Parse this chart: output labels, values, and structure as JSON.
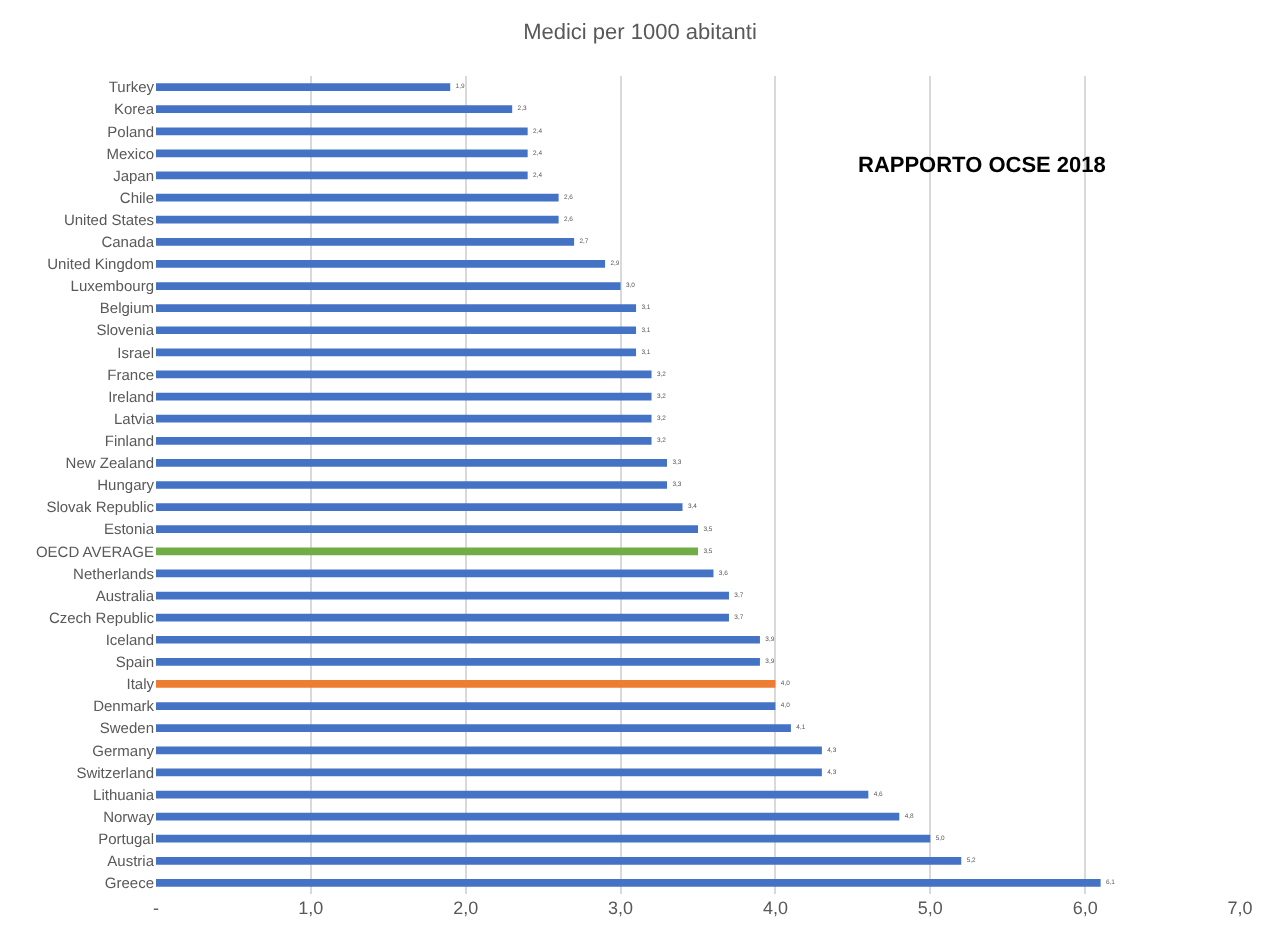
{
  "chart_data": {
    "type": "bar",
    "orientation": "horizontal",
    "title": "Medici per 1000 abitanti",
    "categories": [
      "Turkey",
      "Korea",
      "Poland",
      "Mexico",
      "Japan",
      "Chile",
      "United States",
      "Canada",
      "United Kingdom",
      "Luxembourg",
      "Belgium",
      "Slovenia",
      "Israel",
      "France",
      "Ireland",
      "Latvia",
      "Finland",
      "New Zealand",
      "Hungary",
      "Slovak Republic",
      "Estonia",
      "OECD AVERAGE",
      "Netherlands",
      "Australia",
      "Czech Republic",
      "Iceland",
      "Spain",
      "Italy",
      "Denmark",
      "Sweden",
      "Germany",
      "Switzerland",
      "Lithuania",
      "Norway",
      "Portugal",
      "Austria",
      "Greece"
    ],
    "values": [
      1.9,
      2.3,
      2.4,
      2.4,
      2.4,
      2.6,
      2.6,
      2.7,
      2.9,
      3.0,
      3.1,
      3.1,
      3.1,
      3.2,
      3.2,
      3.2,
      3.2,
      3.3,
      3.3,
      3.4,
      3.5,
      3.5,
      3.6,
      3.7,
      3.7,
      3.9,
      3.9,
      4.0,
      4.0,
      4.1,
      4.3,
      4.3,
      4.6,
      4.8,
      5.0,
      5.2,
      6.1
    ],
    "value_labels": [
      "1,9",
      "2,3",
      "2,4",
      "2,4",
      "2,4",
      "2,6",
      "2,6",
      "2,7",
      "2,9",
      "3,0",
      "3,1",
      "3,1",
      "3,1",
      "3,2",
      "3,2",
      "3,2",
      "3,2",
      "3,3",
      "3,3",
      "3,4",
      "3,5",
      "3,5",
      "3,6",
      "3,7",
      "3,7",
      "3,9",
      "3,9",
      "4,0",
      "4,0",
      "4,1",
      "4,3",
      "4,3",
      "4,6",
      "4,8",
      "5,0",
      "5,2",
      "6,1"
    ],
    "colors": [
      "#4472c4",
      "#4472c4",
      "#4472c4",
      "#4472c4",
      "#4472c4",
      "#4472c4",
      "#4472c4",
      "#4472c4",
      "#4472c4",
      "#4472c4",
      "#4472c4",
      "#4472c4",
      "#4472c4",
      "#4472c4",
      "#4472c4",
      "#4472c4",
      "#4472c4",
      "#4472c4",
      "#4472c4",
      "#4472c4",
      "#4472c4",
      "#70ad47",
      "#4472c4",
      "#4472c4",
      "#4472c4",
      "#4472c4",
      "#4472c4",
      "#ed7d31",
      "#4472c4",
      "#4472c4",
      "#4472c4",
      "#4472c4",
      "#4472c4",
      "#4472c4",
      "#4472c4",
      "#4472c4",
      "#4472c4"
    ],
    "xlim": [
      0,
      7
    ],
    "xticks": [
      {
        "value": 0,
        "label": "-"
      },
      {
        "value": 1,
        "label": "1,0"
      },
      {
        "value": 2,
        "label": "2,0"
      },
      {
        "value": 3,
        "label": "3,0"
      },
      {
        "value": 4,
        "label": "4,0"
      },
      {
        "value": 5,
        "label": "5,0"
      },
      {
        "value": 6,
        "label": "6,0"
      },
      {
        "value": 7,
        "label": "7,0"
      }
    ],
    "grid": "x",
    "annotations": [
      "RAPPORTO OCSE 2018"
    ]
  }
}
